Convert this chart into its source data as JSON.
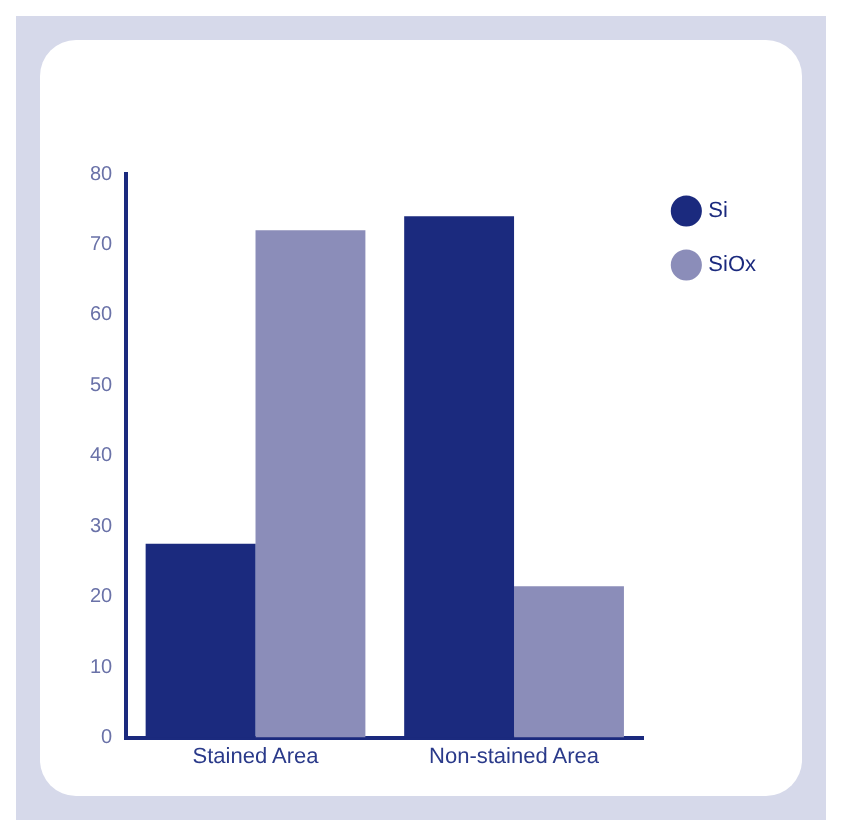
{
  "chart_data": {
    "type": "bar",
    "categories": [
      "Stained Area",
      "Non-stained Area"
    ],
    "series": [
      {
        "name": "Si",
        "color": "#1b2a7e",
        "values": [
          27.5,
          74
        ]
      },
      {
        "name": "SiOx",
        "color": "#8b8db9",
        "values": [
          72,
          21.5
        ]
      }
    ],
    "ylim": [
      0,
      80
    ],
    "yticks": [
      0,
      10,
      20,
      30,
      40,
      50,
      60,
      70,
      80
    ],
    "grid": false,
    "legend": "top right"
  }
}
